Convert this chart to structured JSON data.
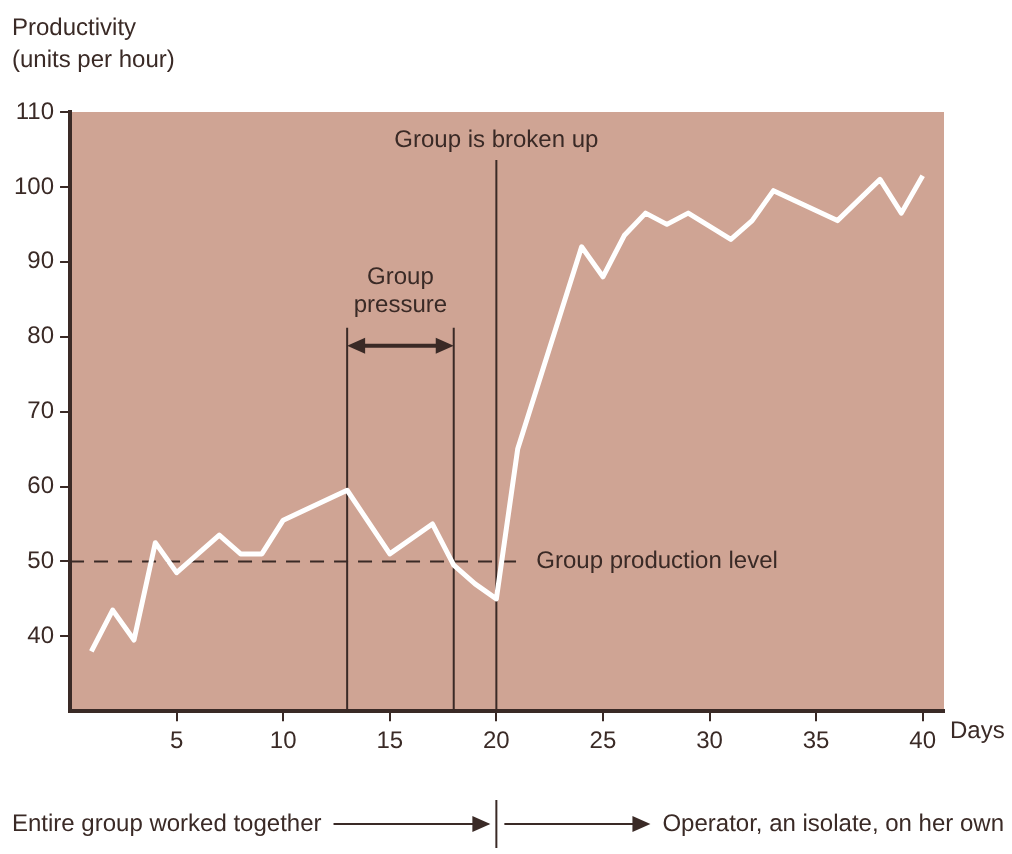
{
  "chart_data": {
    "type": "line",
    "ylabel": "Productivity\n(units per hour)",
    "xlabel": "Days",
    "x": [
      1,
      2,
      3,
      4,
      5,
      7,
      8,
      9,
      10,
      13,
      15,
      17,
      18,
      19,
      20,
      21,
      24,
      25,
      26,
      27,
      28,
      29,
      31,
      32,
      33,
      36,
      38,
      39,
      40
    ],
    "series": [
      {
        "color": "#ffffff",
        "values": [
          38,
          43.5,
          39.5,
          52.5,
          48.5,
          53.5,
          51,
          51,
          55.5,
          59.5,
          51,
          55,
          49.5,
          47,
          45,
          65,
          92,
          88,
          93.5,
          96.5,
          95,
          96.5,
          93,
          95.5,
          99.5,
          95.5,
          101,
          96.5,
          101.5
        ]
      }
    ],
    "xlim": [
      0,
      41
    ],
    "xticks": [
      5,
      10,
      15,
      20,
      25,
      30,
      35,
      40
    ],
    "ylim": [
      30,
      110
    ],
    "yticks": [
      40,
      50,
      60,
      70,
      80,
      90,
      100,
      110
    ],
    "grid": false,
    "legend": false,
    "marker": "none",
    "line_style": "solid",
    "ref_lines": [
      {
        "axis": "y",
        "value": 50,
        "label": "Group production level",
        "line_style": "dashed"
      },
      {
        "axis": "x",
        "value": 13
      },
      {
        "axis": "x",
        "value": 18
      },
      {
        "axis": "x",
        "value": 20,
        "label": "Group is broken up"
      }
    ],
    "annotations": [
      "Group pressure",
      "Entire group worked together",
      "Operator, an isolate, on her own"
    ]
  }
}
